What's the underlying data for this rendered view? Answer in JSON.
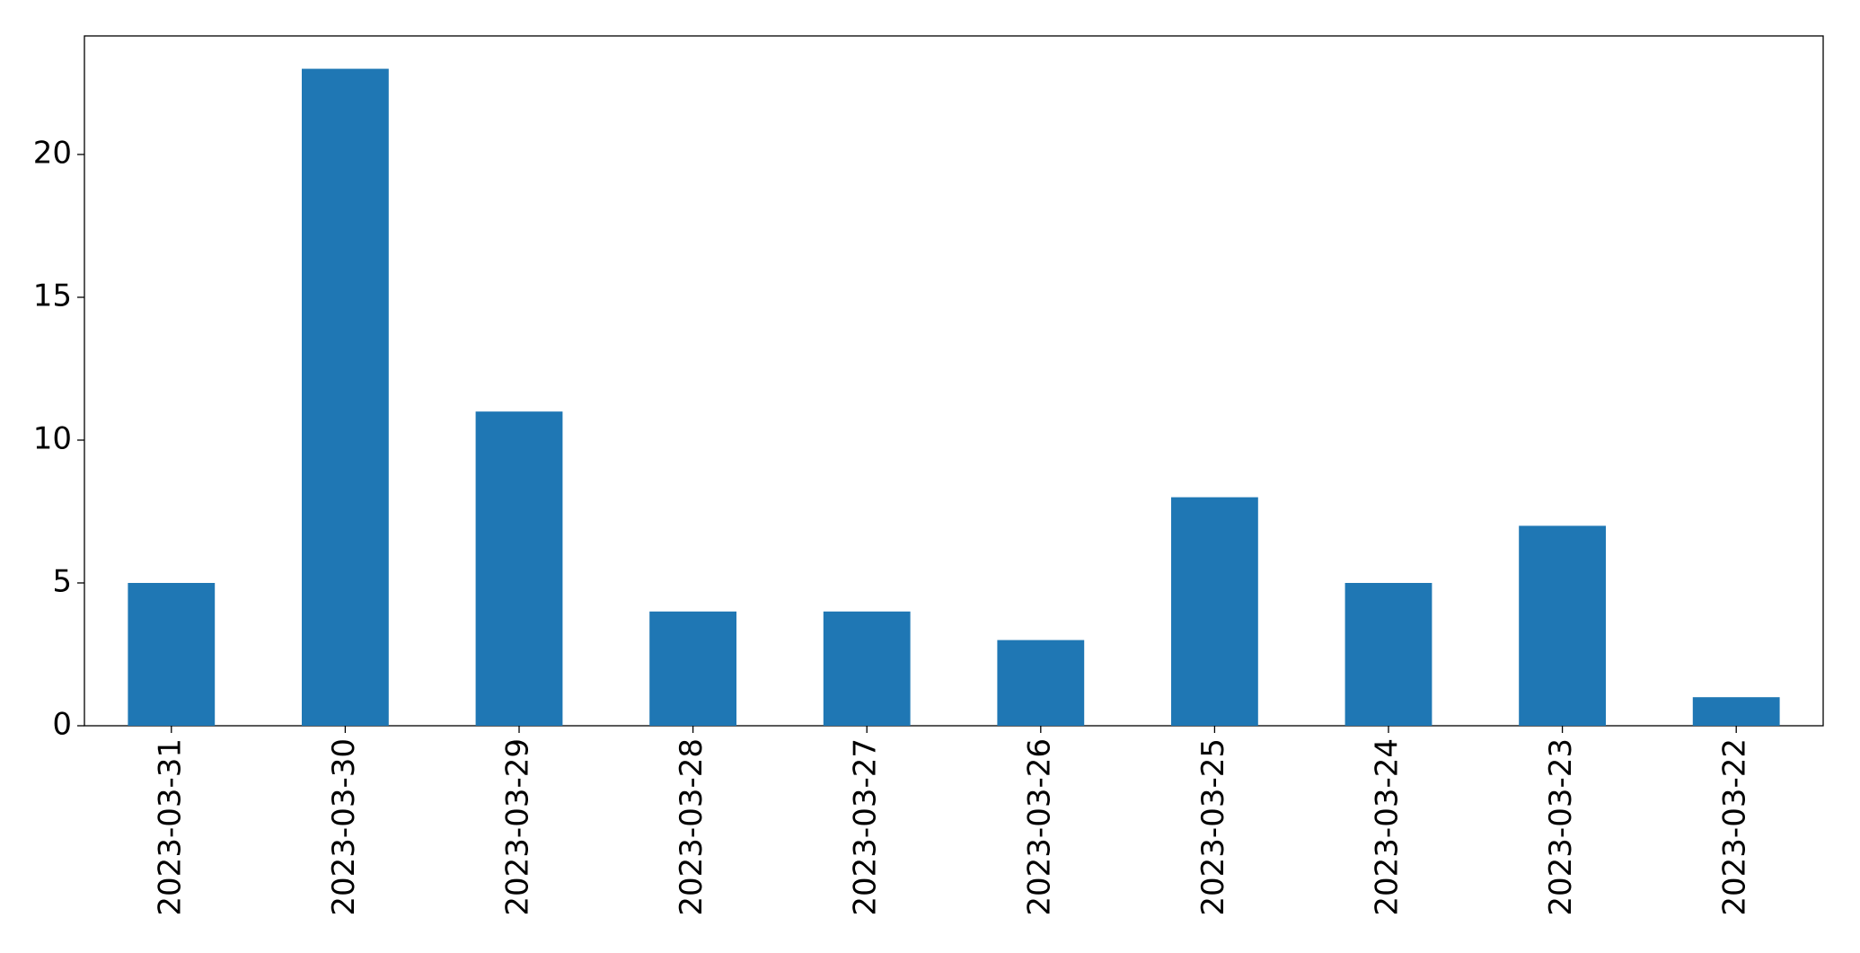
{
  "chart_data": {
    "type": "bar",
    "categories": [
      "2023-03-31",
      "2023-03-30",
      "2023-03-29",
      "2023-03-28",
      "2023-03-27",
      "2023-03-26",
      "2023-03-25",
      "2023-03-24",
      "2023-03-23",
      "2023-03-22"
    ],
    "values": [
      5,
      23,
      11,
      4,
      4,
      3,
      8,
      5,
      7,
      1
    ],
    "color": "#1f77b4",
    "ylim": [
      0,
      24.15
    ],
    "yticks": [
      0,
      5,
      10,
      15,
      20
    ],
    "grid": false
  }
}
